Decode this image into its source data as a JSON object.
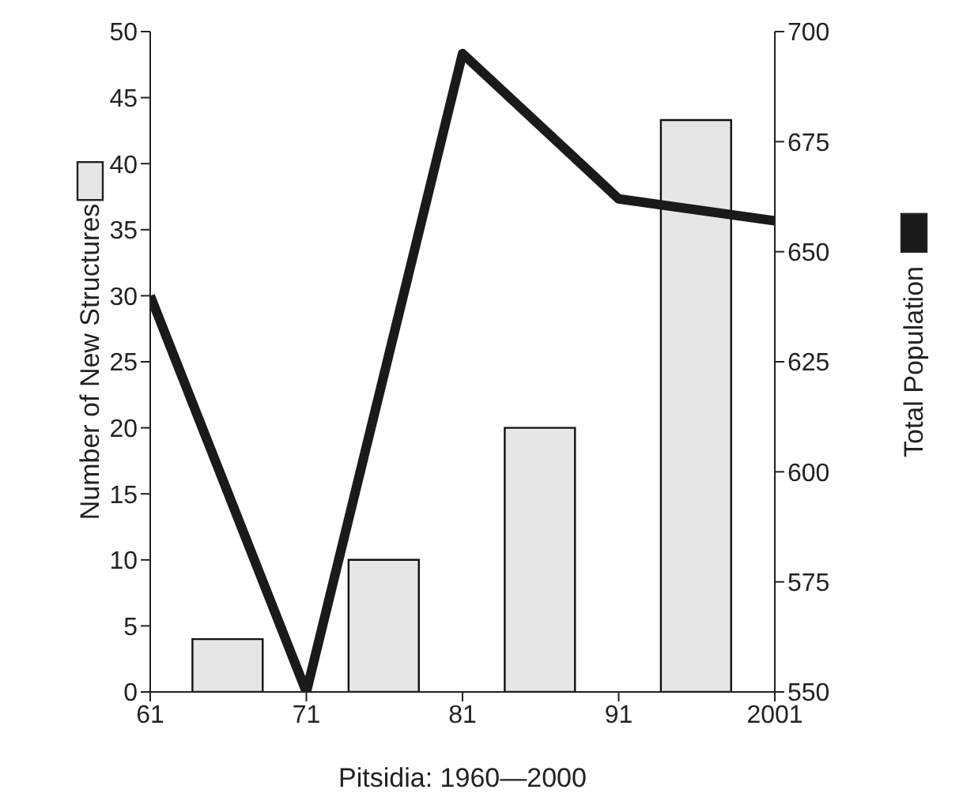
{
  "chart_data": {
    "type": "bar",
    "xlabel": "Pitsidia: 1960—2000",
    "ylabel": "Number of New Structures",
    "y2label": "Total Population",
    "xlim": [
      1961,
      2001
    ],
    "xticks": [
      {
        "value": 1961,
        "label": "61"
      },
      {
        "value": 1971,
        "label": "71"
      },
      {
        "value": 1981,
        "label": "81"
      },
      {
        "value": 1991,
        "label": "91"
      },
      2001
    ],
    "ylim": [
      0,
      50
    ],
    "yticks": [
      0,
      5,
      10,
      15,
      20,
      25,
      30,
      35,
      40,
      45,
      50
    ],
    "y2lim": [
      550,
      700
    ],
    "y2ticks": [
      550,
      575,
      600,
      625,
      650,
      675,
      700
    ],
    "series": [
      {
        "color": "#e6e6e6",
        "x": [
          1966,
          1976,
          1986,
          1996
        ],
        "values": [
          4,
          10,
          20,
          43.3
        ]
      },
      {
        "type": "line",
        "axis": "y2",
        "color": "#1a1a1a",
        "x": [
          1961,
          1971,
          1981,
          1991,
          2001
        ],
        "values": [
          640,
          550,
          695,
          662,
          657
        ]
      }
    ]
  }
}
